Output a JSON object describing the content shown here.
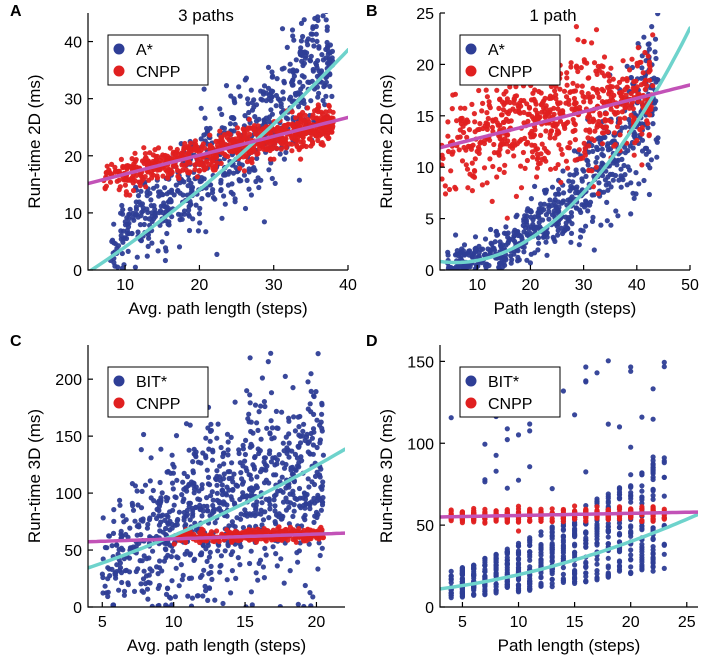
{
  "colors": {
    "series1": "#2E3E96",
    "series2": "#E02020",
    "fit1": "#6ED3CC",
    "fit2": "#C252B7"
  },
  "chart_data": [
    {
      "type": "scatter",
      "letter": "A",
      "title": "3 paths",
      "xlabel": "Avg. path length (steps)",
      "ylabel": "Run-time 2D (ms)",
      "xlim": [
        5,
        40
      ],
      "ylim": [
        0,
        45
      ],
      "xticks": [
        10,
        20,
        30,
        40
      ],
      "yticks": [
        0,
        10,
        20,
        30,
        40
      ],
      "legend_position": "top-left",
      "series": [
        {
          "name": "A*",
          "x_range": [
            8,
            38
          ],
          "cloud": "quad",
          "fit": [
            0.35,
            0.55,
            0.012
          ],
          "spread": 3.2,
          "rel_spread": 0.08,
          "count": 700
        },
        {
          "name": "CNPP",
          "x_range": [
            7,
            38
          ],
          "cloud": "linear",
          "fit": [
            13.8,
            0.31,
            0
          ],
          "spread": 1.6,
          "rel_spread": 0,
          "count": 700
        }
      ],
      "fit_lines": [
        {
          "name": "A* fit",
          "coef": [
            -4.5,
            0.78,
            0.0074
          ],
          "x_range": [
            5,
            40
          ]
        },
        {
          "name": "CNPP fit",
          "coef": [
            13.5,
            0.33,
            0
          ],
          "x_range": [
            5,
            40
          ]
        }
      ]
    },
    {
      "type": "scatter",
      "letter": "B",
      "title": "1 path",
      "xlabel": "Path length (steps)",
      "ylabel": "Run-time 2D (ms)",
      "xlim": [
        3,
        50
      ],
      "ylim": [
        0,
        25
      ],
      "xticks": [
        10,
        20,
        30,
        40,
        50
      ],
      "yticks": [
        0,
        5,
        10,
        15,
        20,
        25
      ],
      "legend_position": "top-left",
      "series": [
        {
          "name": "A*",
          "x_range": [
            4,
            44
          ],
          "cloud": "quad",
          "fit": [
            0.3,
            -0.02,
            0.0092
          ],
          "spread": 0.8,
          "rel_spread": 0.18,
          "count": 650
        },
        {
          "name": "CNPP",
          "x_range": [
            3,
            43
          ],
          "cloud": "linear",
          "fit": [
            11.8,
            0.13,
            0
          ],
          "spread": 2.6,
          "rel_spread": 0,
          "count": 650
        }
      ],
      "fit_lines": [
        {
          "name": "A* fit",
          "coef": [
            1.13,
            -0.137,
            0.0117
          ],
          "x_range": [
            3,
            50
          ]
        },
        {
          "name": "CNPP fit",
          "coef": [
            11.5,
            0.13,
            0
          ],
          "x_range": [
            3,
            50
          ]
        }
      ]
    },
    {
      "type": "scatter",
      "letter": "C",
      "title": "",
      "xlabel": "Avg. path length (steps)",
      "ylabel": "Run-time 3D (ms)",
      "xlim": [
        4,
        22
      ],
      "ylim": [
        0,
        230
      ],
      "xticks": [
        5,
        10,
        15,
        20
      ],
      "yticks": [
        0,
        50,
        100,
        150,
        200
      ],
      "legend_position": "top-left",
      "series": [
        {
          "name": "BIT*",
          "x_range": [
            5,
            20.5
          ],
          "cloud": "quad",
          "fit": [
            6.2,
            6.9,
            -0.05
          ],
          "spread": 10,
          "rel_spread": 0.32,
          "count": 900
        },
        {
          "name": "CNPP",
          "x_range": [
            10,
            20.5
          ],
          "cloud": "linear",
          "fit": [
            58,
            0.3,
            0
          ],
          "spread": 2.5,
          "rel_spread": 0,
          "count": 350
        }
      ],
      "fit_lines": [
        {
          "name": "BIT* fit",
          "coef": [
            18.8,
            3.53,
            0.087
          ],
          "x_range": [
            4,
            22
          ]
        },
        {
          "name": "CNPP fit",
          "coef": [
            55.6,
            0.42,
            0
          ],
          "x_range": [
            4,
            22
          ]
        }
      ]
    },
    {
      "type": "scatter",
      "letter": "D",
      "title": "",
      "xlabel": "Path length (steps)",
      "ylabel": "Run-time 3D (ms)",
      "xlim": [
        3,
        26
      ],
      "ylim": [
        0,
        160
      ],
      "xticks": [
        5,
        10,
        15,
        20,
        25
      ],
      "yticks": [
        0,
        50,
        100,
        150
      ],
      "legend_position": "top-left",
      "series": [
        {
          "name": "BIT*",
          "x_range": [
            4,
            23
          ],
          "cloud": "columns",
          "fit": [
            8,
            1.0,
            0.05
          ],
          "spread": 6,
          "rel_spread": 0.45,
          "count": 700
        },
        {
          "name": "CNPP",
          "x_range": [
            4,
            23
          ],
          "cloud": "columns",
          "fit": [
            55,
            0.09,
            0
          ],
          "spread": 2.2,
          "rel_spread": 0,
          "count": 400
        }
      ],
      "fit_lines": [
        {
          "name": "BIT* fit",
          "coef": [
            8.7,
            0.645,
            0.046
          ],
          "x_range": [
            3,
            26
          ]
        },
        {
          "name": "CNPP fit",
          "coef": [
            54.6,
            0.13,
            0
          ],
          "x_range": [
            3,
            26
          ]
        }
      ]
    }
  ]
}
